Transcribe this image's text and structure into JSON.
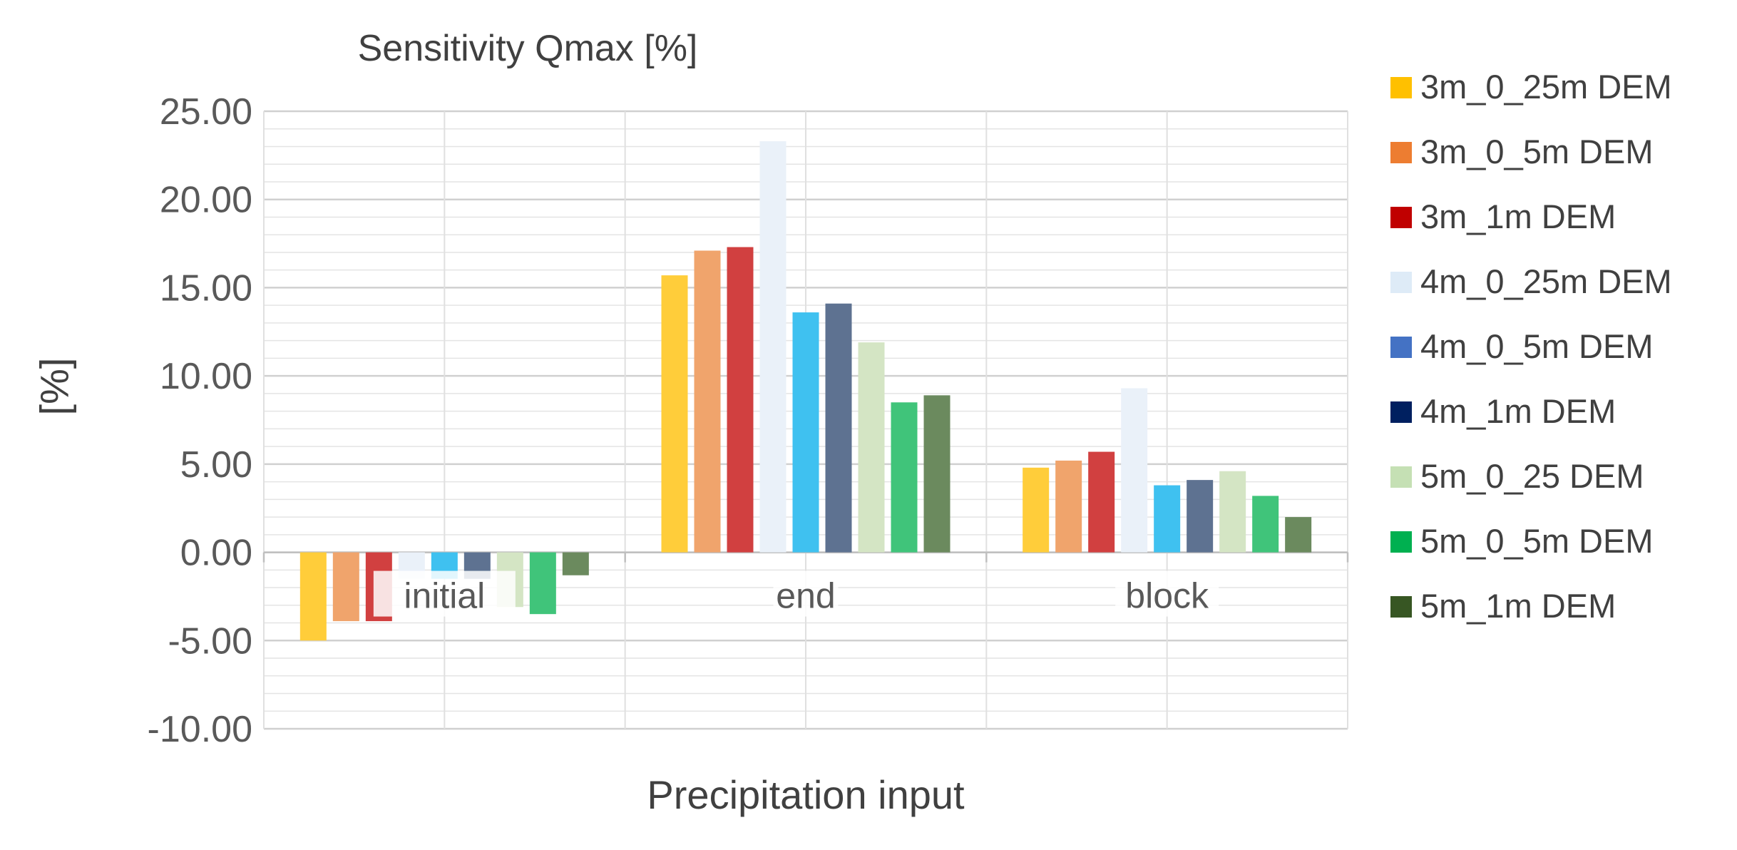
{
  "chart_data": {
    "type": "bar",
    "title": "Sensitivity Qmax [%]",
    "xlabel": "Precipitation input",
    "ylabel": "[%]",
    "ylim": [
      -10,
      25
    ],
    "yticks": [
      "25.00",
      "20.00",
      "15.00",
      "10.00",
      "5.00",
      "0.00",
      "-5.00",
      "-10.00"
    ],
    "grid": true,
    "legend_position": "right",
    "categories": [
      "initial",
      "end",
      "block"
    ],
    "series": [
      {
        "name": "3m_0_25m DEM",
        "color": "#FFC000",
        "values": [
          -5.0,
          15.7,
          4.8
        ]
      },
      {
        "name": "3m_0_5m DEM",
        "color": "#ED7D31",
        "values": [
          -3.9,
          17.1,
          5.2
        ]
      },
      {
        "name": "3m_1m DEM",
        "color": "#C00000",
        "values": [
          -3.9,
          17.3,
          5.7
        ]
      },
      {
        "name": "4m_0_25m DEM",
        "color": "#DEEBF7",
        "values": [
          -1.5,
          23.3,
          9.3
        ]
      },
      {
        "name": "4m_0_5m DEM",
        "color": "#4472C4",
        "values": [
          -1.5,
          13.6,
          3.8
        ]
      },
      {
        "name": "4m_1m DEM",
        "color": "#002060",
        "values": [
          -1.5,
          14.1,
          4.1
        ]
      },
      {
        "name": "5m_0_25 DEM",
        "color": "#C5E0B4",
        "values": [
          -3.1,
          11.9,
          4.6
        ]
      },
      {
        "name": "5m_0_5m DEM",
        "color": "#00B050",
        "values": [
          -3.5,
          8.5,
          3.2
        ]
      },
      {
        "name": "5m_1m DEM",
        "color": "#375623",
        "values": [
          -1.3,
          8.9,
          2.0
        ]
      }
    ],
    "display_colors": [
      "#FFCD3A",
      "#F0A46C",
      "#D14040",
      "#EAF1F9",
      "#3FC1F0",
      "#5E7291",
      "#D4E5C4",
      "#40C47A",
      "#6B8A5E"
    ]
  }
}
